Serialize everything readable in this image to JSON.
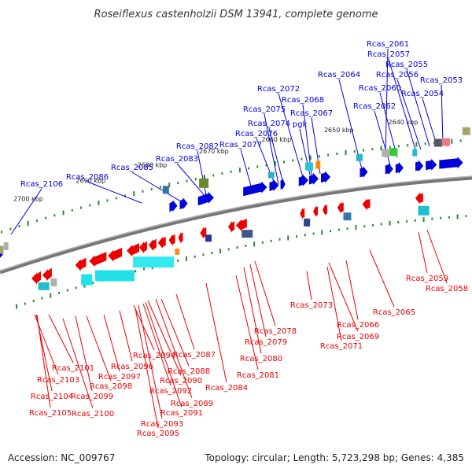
{
  "title": "Roseiflexus castenholzii DSM 13941, complete genome",
  "accession_text": "Accession: NC_009767",
  "topology_text": "Topology: circular; Length: 5,723,298 bp; Genes: 4,385",
  "colors": {
    "forward": "#0000dd",
    "reverse": "#ee0000",
    "backbone": "#777777",
    "tick": "#2a8a2a"
  },
  "kbp_ticks": [
    "2700 kbp",
    "2690 kbp",
    "2680 kbp",
    "2670 kbp",
    "2660 kbp",
    "2650 kbp",
    "2640 kbp"
  ],
  "forward_genes": [
    "Rcas_2106",
    "Rcas_2086",
    "Rcas_2085",
    "Rcas_2083",
    "Rcas_2082",
    "Rcas_2077",
    "Rcas_2076",
    "Rcas_2075",
    "Rcas_2074",
    "Rcas_2072",
    "pgk",
    "Rcas_2068",
    "Rcas_2067",
    "Rcas_2064",
    "Rcas_2062",
    "Rcas_2061",
    "Rcas_2060",
    "Rcas_2057",
    "Rcas_2056",
    "Rcas_2055",
    "Rcas_2054",
    "Rcas_2053"
  ],
  "reverse_genes": [
    "Rcas_2105",
    "Rcas_2104",
    "Rcas_2103",
    "Rcas_2101",
    "Rcas_2100",
    "Rcas_2099",
    "Rcas_2098",
    "Rcas_2097",
    "Rcas_2096",
    "Rcas_2095",
    "Rcas_2094",
    "Rcas_2093",
    "Rcas_2092",
    "Rcas_2091",
    "Rcas_2090",
    "Rcas_2089",
    "Rcas_2088",
    "Rcas_2087",
    "Rcas_2084",
    "Rcas_2081",
    "Rcas_2080",
    "Rcas_2079",
    "Rcas_2078",
    "Rcas_2073",
    "Rcas_2071",
    "Rcas_2069",
    "Rcas_2066",
    "Rcas_2065",
    "Rcas_2059",
    "Rcas_2058"
  ]
}
